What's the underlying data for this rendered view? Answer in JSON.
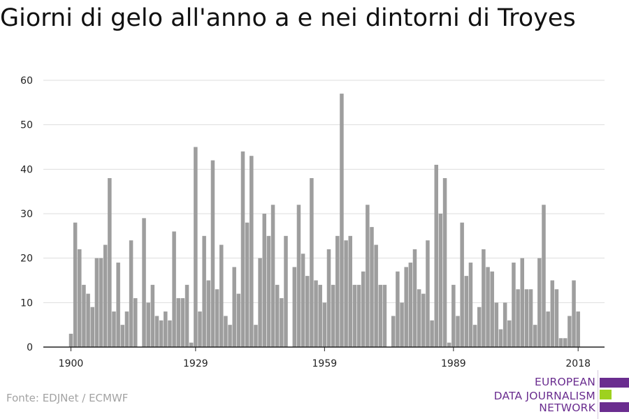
{
  "chart_data": {
    "type": "bar",
    "title": "Giorni di gelo all'anno a e nei dintorni di Troyes",
    "xlabel": "",
    "ylabel": "",
    "x": [
      1900,
      1901,
      1902,
      1903,
      1904,
      1905,
      1906,
      1907,
      1908,
      1909,
      1910,
      1911,
      1912,
      1913,
      1914,
      1915,
      1916,
      1917,
      1918,
      1919,
      1920,
      1921,
      1922,
      1923,
      1924,
      1925,
      1926,
      1927,
      1928,
      1929,
      1930,
      1931,
      1932,
      1933,
      1934,
      1935,
      1936,
      1937,
      1938,
      1939,
      1940,
      1941,
      1942,
      1943,
      1944,
      1945,
      1946,
      1947,
      1948,
      1949,
      1950,
      1951,
      1952,
      1953,
      1954,
      1955,
      1956,
      1957,
      1958,
      1959,
      1960,
      1961,
      1962,
      1963,
      1964,
      1965,
      1966,
      1967,
      1968,
      1969,
      1970,
      1971,
      1972,
      1973,
      1974,
      1975,
      1976,
      1977,
      1978,
      1979,
      1980,
      1981,
      1982,
      1983,
      1984,
      1985,
      1986,
      1987,
      1988,
      1989,
      1990,
      1991,
      1992,
      1993,
      1994,
      1995,
      1996,
      1997,
      1998,
      1999,
      2000,
      2001,
      2002,
      2003,
      2004,
      2005,
      2006,
      2007,
      2008,
      2009,
      2010,
      2011,
      2012,
      2013,
      2014,
      2015,
      2016,
      2017,
      2018
    ],
    "values": [
      3,
      28,
      22,
      14,
      12,
      9,
      20,
      20,
      23,
      38,
      8,
      19,
      5,
      8,
      24,
      11,
      0,
      29,
      10,
      14,
      7,
      6,
      8,
      6,
      26,
      11,
      11,
      14,
      1,
      45,
      8,
      25,
      15,
      42,
      13,
      23,
      7,
      5,
      18,
      12,
      44,
      28,
      43,
      5,
      20,
      30,
      25,
      32,
      14,
      11,
      25,
      0,
      18,
      32,
      21,
      16,
      38,
      15,
      14,
      10,
      22,
      14,
      25,
      57,
      24,
      25,
      14,
      14,
      17,
      32,
      27,
      23,
      14,
      14,
      0,
      7,
      17,
      10,
      18,
      19,
      22,
      13,
      12,
      24,
      6,
      41,
      30,
      38,
      1,
      14,
      7,
      28,
      16,
      19,
      5,
      9,
      22,
      18,
      17,
      10,
      4,
      10,
      6,
      19,
      13,
      20,
      13,
      13,
      5,
      20,
      32,
      8,
      15,
      13,
      2,
      2,
      7,
      15,
      8
    ],
    "xticks": [
      1900,
      1929,
      1959,
      1989,
      2018
    ],
    "yticks": [
      0,
      10,
      20,
      30,
      40,
      50,
      60
    ],
    "ylim": [
      0,
      60
    ],
    "grid": true,
    "bar_color": "#9e9e9e",
    "grid_color": "#dddddd"
  },
  "source": "Fonte: EDJNet / ECMWF",
  "logo": {
    "lines": [
      "EUROPEAN",
      "DATA JOURNALISM",
      "NETWORK"
    ],
    "colors": {
      "text": "#6a2d8f",
      "purple": "#6a2d8f",
      "green": "#9ed11f"
    }
  }
}
